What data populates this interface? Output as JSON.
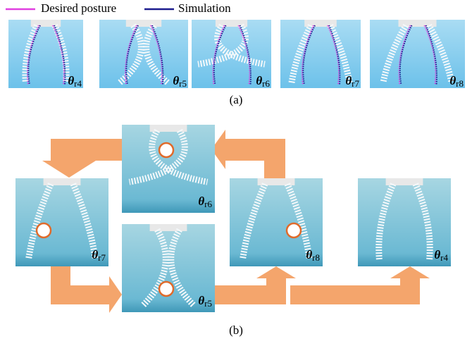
{
  "legend": [
    {
      "name": "Desired posture",
      "color": "#e040e0"
    },
    {
      "name": "Simulation",
      "color": "#1c1c8e"
    }
  ],
  "panels_a": [
    {
      "symbol": "θ",
      "sub": "r4"
    },
    {
      "symbol": "θ",
      "sub": "r5"
    },
    {
      "symbol": "θ",
      "sub": "r6"
    },
    {
      "symbol": "θ",
      "sub": "r7"
    },
    {
      "symbol": "θ",
      "sub": "r8"
    }
  ],
  "caption_a": "(a)",
  "panels_b": [
    {
      "symbol": "θ",
      "sub": "r6"
    },
    {
      "symbol": "θ",
      "sub": "r7"
    },
    {
      "symbol": "θ",
      "sub": "r5"
    },
    {
      "symbol": "θ",
      "sub": "r8"
    },
    {
      "symbol": "θ",
      "sub": "r4"
    }
  ],
  "caption_b": "(b)"
}
